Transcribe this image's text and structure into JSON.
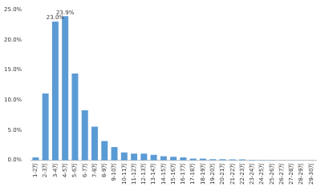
{
  "chart_data": {
    "type": "bar",
    "categories": [
      "1-2万",
      "2-3万",
      "3-4万",
      "4-5万",
      "5-6万",
      "6-7万",
      "7-8万",
      "8-9万",
      "9-10万",
      "10-11万",
      "11-12万",
      "12-13万",
      "13-14万",
      "14-15万",
      "15-16万",
      "16-17万",
      "17-18万",
      "18-19万",
      "19-20万",
      "20-21万",
      "21-22万",
      "22-23万",
      "23-24万",
      "24-25万",
      "25-26万",
      "26-27万",
      "27-28万",
      "28-29万",
      "29-30万"
    ],
    "values": [
      0.5,
      11.1,
      23.0,
      23.9,
      14.4,
      8.3,
      5.6,
      3.2,
      2.2,
      1.3,
      1.1,
      1.1,
      0.9,
      0.7,
      0.6,
      0.5,
      0.3,
      0.3,
      0.2,
      0.2,
      0.15,
      0.15,
      0.1,
      0.05,
      0.05,
      0.03,
      0.03,
      0.02,
      0.02
    ],
    "value_labels": [
      null,
      null,
      "23.0%",
      "23.9%",
      null,
      null,
      null,
      null,
      null,
      null,
      null,
      null,
      null,
      null,
      null,
      null,
      null,
      null,
      null,
      null,
      null,
      null,
      null,
      null,
      null,
      null,
      null,
      null,
      null
    ],
    "data_labels": true,
    "color": "#5b9bd5",
    "ylim": [
      0,
      25
    ],
    "yticks": [
      {
        "value": 0,
        "label": "0.0%"
      },
      {
        "value": 5,
        "label": "5.0%"
      },
      {
        "value": 10,
        "label": "10.0%"
      },
      {
        "value": 15,
        "label": "15.0%"
      },
      {
        "value": 20,
        "label": "20.0%"
      },
      {
        "value": 25,
        "label": "25.0%"
      }
    ],
    "grid": false
  }
}
